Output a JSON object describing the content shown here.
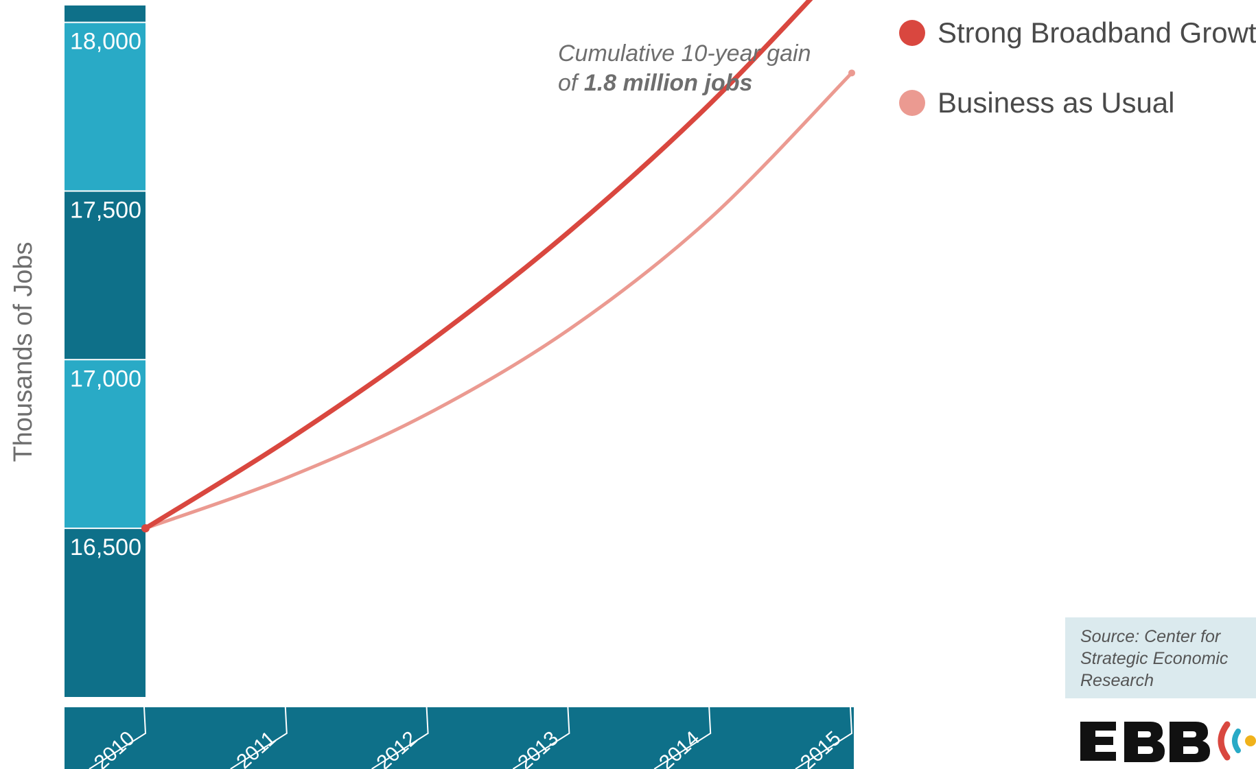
{
  "chart_data": {
    "type": "line",
    "ylabel": "Thousands of Jobs",
    "xlabel": "",
    "x": [
      "2010",
      "2011",
      "2012",
      "2013",
      "2014",
      "2015"
    ],
    "y_ticks": [
      "18,000",
      "17,500",
      "17,000",
      "16,500"
    ],
    "ylim": [
      16000,
      18050
    ],
    "series": [
      {
        "name": "Strong Broadband Growth",
        "color": "#d9473f",
        "values": [
          16500,
          16760,
          17050,
          17380,
          17760,
          18200
        ]
      },
      {
        "name": "Business as Usual",
        "color": "#eb9a91",
        "values": [
          16500,
          16650,
          16840,
          17090,
          17420,
          17850
        ]
      }
    ],
    "annotation": {
      "line1": "Cumulative 10-year gain",
      "line2_prefix": "of ",
      "line2_bold": "1.8 million jobs"
    },
    "legend_position": "top-right",
    "grid": false,
    "axis_band_colors": [
      "#29aac6",
      "#0e7089"
    ]
  },
  "source": {
    "lines": [
      "Source: Center for",
      "Strategic Economic",
      "Research"
    ]
  },
  "logo": {
    "text": "EBB",
    "colors": [
      "#111111",
      "#d9473f",
      "#29aac6",
      "#f0b21b"
    ]
  }
}
